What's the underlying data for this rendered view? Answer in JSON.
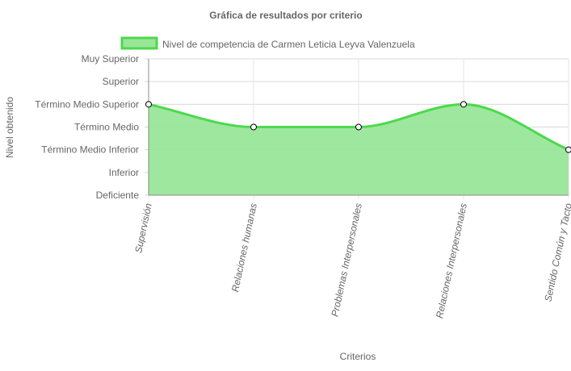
{
  "chart_data": {
    "type": "area",
    "title": "Gráfica de resultados por criterio",
    "xlabel": "Criterios",
    "ylabel": "Nivel obtenido",
    "y_levels": [
      "Deficiente",
      "Inferior",
      "Término Medio Inferior",
      "Término Medio",
      "Término Medio Superior",
      "Superior",
      "Muy Superior"
    ],
    "categories": [
      "Supervisión",
      "Relaciones humanas",
      "Problemas Interpersonales",
      "Relaciones Interpersonales",
      "Sentido Común y Tacto"
    ],
    "series": [
      {
        "name": "Nivel de competencia de Carmen Leticia Leyva Valenzuela",
        "values": [
          "Término Medio Superior",
          "Término Medio",
          "Término Medio",
          "Término Medio Superior",
          "Término Medio Inferior"
        ],
        "color": "#4cd94c",
        "fill": "#99e699"
      }
    ],
    "grid": true,
    "legend_position": "top"
  }
}
